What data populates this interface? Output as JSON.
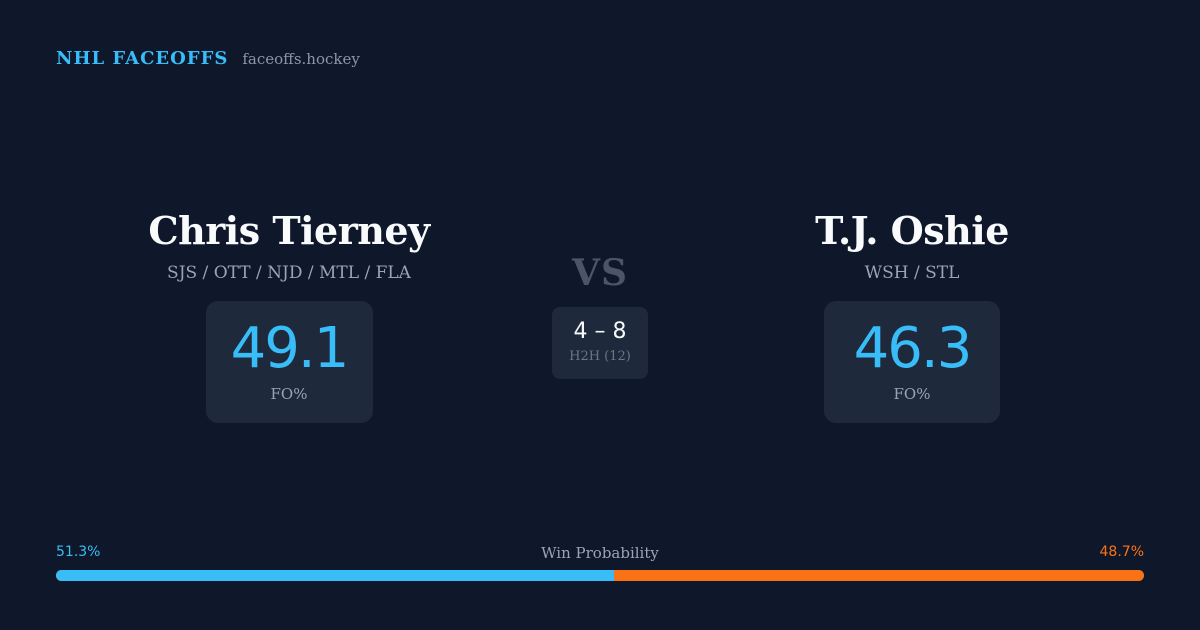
{
  "brand": {
    "name": "NHL FACEOFFS",
    "site": "faceoffs.hockey"
  },
  "players": [
    {
      "name": "Chris Tierney",
      "teams": "SJS / OTT / NJD / MTL / FLA",
      "stat_value": "49.1",
      "stat_label": "FO%"
    },
    {
      "name": "T.J. Oshie",
      "teams": "WSH / STL",
      "stat_value": "46.3",
      "stat_label": "FO%"
    }
  ],
  "versus": {
    "label": "VS",
    "h2h_score": "4 – 8",
    "h2h_label": "H2H (12)"
  },
  "win_probability": {
    "title": "Win Probability",
    "left_label": "51.3%",
    "right_label": "48.7%",
    "left_value": 51.3,
    "right_value": 48.7,
    "left_color": "#38bdf8",
    "right_color": "#f97316"
  }
}
